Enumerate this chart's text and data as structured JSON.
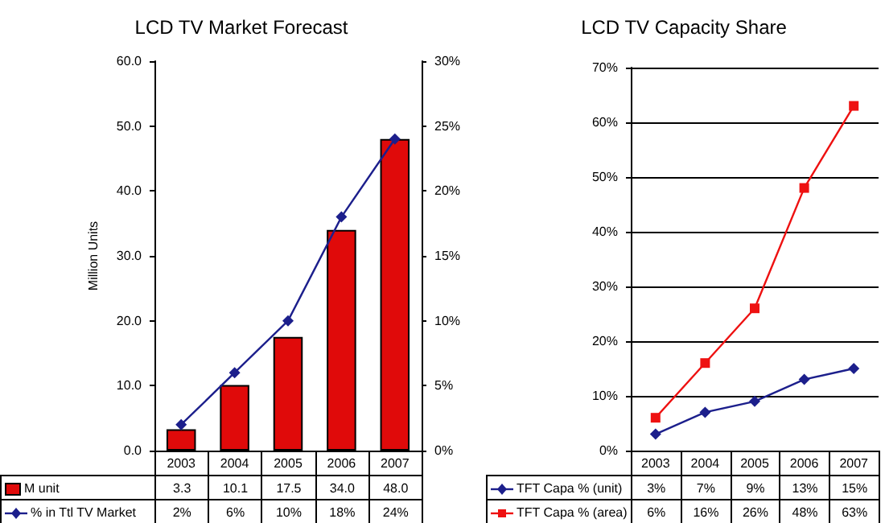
{
  "chart_data": [
    {
      "type": "bar",
      "title": "LCD TV Market Forecast",
      "ylabel": "Million Units",
      "categories": [
        "2003",
        "2004",
        "2005",
        "2006",
        "2007"
      ],
      "series": [
        {
          "name": "M unit",
          "color": "#e00a0a",
          "values": [
            3.3,
            10.1,
            17.5,
            34.0,
            48.0
          ],
          "value_labels": [
            "3.3",
            "10.1",
            "17.5",
            "34.0",
            "48.0"
          ]
        },
        {
          "name": "% in Ttl  TV Market",
          "type": "line",
          "axis": "y2",
          "marker": "diamond",
          "color": "#1c1f8c",
          "values": [
            2,
            6,
            10,
            18,
            24
          ],
          "value_labels": [
            "2%",
            "6%",
            "10%",
            "18%",
            "24%"
          ]
        }
      ],
      "ylim": [
        0,
        60
      ],
      "yticks": [
        {
          "value": 0,
          "label": "0.0"
        },
        {
          "value": 10,
          "label": "10.0"
        },
        {
          "value": 20,
          "label": "20.0"
        },
        {
          "value": 30,
          "label": "30.0"
        },
        {
          "value": 40,
          "label": "40.0"
        },
        {
          "value": 50,
          "label": "50.0"
        },
        {
          "value": 60,
          "label": "60.0"
        }
      ],
      "y2lim": [
        0,
        30
      ],
      "y2ticks": [
        {
          "value": 0,
          "label": "0%"
        },
        {
          "value": 5,
          "label": "5%"
        },
        {
          "value": 10,
          "label": "10%"
        },
        {
          "value": 15,
          "label": "15%"
        },
        {
          "value": 20,
          "label": "20%"
        },
        {
          "value": 25,
          "label": "25%"
        },
        {
          "value": 30,
          "label": "30%"
        }
      ],
      "grid": false,
      "legend": "bottom left"
    },
    {
      "type": "line",
      "title": "LCD TV Capacity Share",
      "categories": [
        "2003",
        "2004",
        "2005",
        "2006",
        "2007"
      ],
      "series": [
        {
          "name": "TFT Capa % (unit)",
          "marker": "diamond",
          "color": "#1c1f8c",
          "values": [
            3,
            7,
            9,
            13,
            15
          ],
          "value_labels": [
            "3%",
            "7%",
            "9%",
            "13%",
            "15%"
          ]
        },
        {
          "name": "TFT Capa % (area)",
          "marker": "square",
          "color": "#ee1111",
          "values": [
            6,
            16,
            26,
            48,
            63
          ],
          "value_labels": [
            "6%",
            "16%",
            "26%",
            "48%",
            "63%"
          ]
        }
      ],
      "ylim": [
        0,
        70
      ],
      "yticks": [
        {
          "value": 0,
          "label": "0%"
        },
        {
          "value": 10,
          "label": "10%"
        },
        {
          "value": 20,
          "label": "20%"
        },
        {
          "value": 30,
          "label": "30%"
        },
        {
          "value": 40,
          "label": "40%"
        },
        {
          "value": 50,
          "label": "50%"
        },
        {
          "value": 60,
          "label": "60%"
        },
        {
          "value": 70,
          "label": "70%"
        }
      ],
      "grid": "y",
      "legend": "bottom left"
    }
  ]
}
